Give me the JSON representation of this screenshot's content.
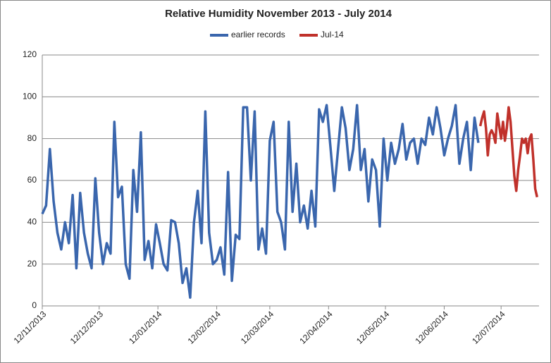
{
  "chart_data": {
    "type": "line",
    "title": "Relative Humidity November 2013 - July 2014",
    "legend": "top",
    "grid": true,
    "ylim": [
      0,
      120
    ],
    "yticks": [
      0,
      20,
      40,
      60,
      80,
      100,
      120
    ],
    "xlim": [
      "2013-11-12",
      "2014-08-01"
    ],
    "xticks": [
      {
        "value": "2013-11-12",
        "label": "12/11/2013"
      },
      {
        "value": "2013-12-12",
        "label": "12/12/2013"
      },
      {
        "value": "2014-01-12",
        "label": "12/01/2014"
      },
      {
        "value": "2014-02-12",
        "label": "12/02/2014"
      },
      {
        "value": "2014-03-12",
        "label": "12/03/2014"
      },
      {
        "value": "2014-04-12",
        "label": "12/04/2014"
      },
      {
        "value": "2014-05-12",
        "label": "12/05/2014"
      },
      {
        "value": "2014-06-12",
        "label": "12/06/2014"
      },
      {
        "value": "2014-07-12",
        "label": "12/07/2014"
      }
    ],
    "series": [
      {
        "name": "earlier records",
        "color": "#3a66ad",
        "x": [
          "2013-11-12",
          "2013-11-14",
          "2013-11-16",
          "2013-11-18",
          "2013-11-20",
          "2013-11-22",
          "2013-11-24",
          "2013-11-26",
          "2013-11-28",
          "2013-11-30",
          "2013-12-02",
          "2013-12-04",
          "2013-12-06",
          "2013-12-08",
          "2013-12-10",
          "2013-12-12",
          "2013-12-14",
          "2013-12-16",
          "2013-12-18",
          "2013-12-20",
          "2013-12-22",
          "2013-12-24",
          "2013-12-26",
          "2013-12-28",
          "2013-12-30",
          "2014-01-01",
          "2014-01-03",
          "2014-01-05",
          "2014-01-07",
          "2014-01-09",
          "2014-01-11",
          "2014-01-13",
          "2014-01-15",
          "2014-01-17",
          "2014-01-19",
          "2014-01-21",
          "2014-01-23",
          "2014-01-25",
          "2014-01-27",
          "2014-01-29",
          "2014-01-31",
          "2014-02-02",
          "2014-02-04",
          "2014-02-06",
          "2014-02-08",
          "2014-02-10",
          "2014-02-12",
          "2014-02-14",
          "2014-02-16",
          "2014-02-18",
          "2014-02-20",
          "2014-02-22",
          "2014-02-24",
          "2014-02-26",
          "2014-02-28",
          "2014-03-02",
          "2014-03-04",
          "2014-03-06",
          "2014-03-08",
          "2014-03-10",
          "2014-03-12",
          "2014-03-14",
          "2014-03-16",
          "2014-03-18",
          "2014-03-20",
          "2014-03-22",
          "2014-03-24",
          "2014-03-26",
          "2014-03-28",
          "2014-03-30",
          "2014-04-01",
          "2014-04-03",
          "2014-04-05",
          "2014-04-07",
          "2014-04-09",
          "2014-04-11",
          "2014-04-13",
          "2014-04-15",
          "2014-04-17",
          "2014-04-19",
          "2014-04-21",
          "2014-04-23",
          "2014-04-25",
          "2014-04-27",
          "2014-04-29",
          "2014-05-01",
          "2014-05-03",
          "2014-05-05",
          "2014-05-07",
          "2014-05-09",
          "2014-05-11",
          "2014-05-13",
          "2014-05-15",
          "2014-05-17",
          "2014-05-19",
          "2014-05-21",
          "2014-05-23",
          "2014-05-25",
          "2014-05-27",
          "2014-05-29",
          "2014-05-31",
          "2014-06-02",
          "2014-06-04",
          "2014-06-06",
          "2014-06-08",
          "2014-06-10",
          "2014-06-12",
          "2014-06-14",
          "2014-06-16",
          "2014-06-18",
          "2014-06-20",
          "2014-06-22",
          "2014-06-24",
          "2014-06-26",
          "2014-06-28",
          "2014-06-30"
        ],
        "values": [
          44,
          48,
          75,
          50,
          35,
          27,
          40,
          30,
          53,
          18,
          54,
          35,
          25,
          18,
          61,
          35,
          20,
          30,
          25,
          88,
          52,
          57,
          20,
          13,
          65,
          45,
          83,
          22,
          31,
          18,
          39,
          30,
          20,
          17,
          41,
          40,
          30,
          11,
          18,
          4,
          40,
          55,
          30,
          93,
          35,
          20,
          22,
          28,
          15,
          64,
          12,
          34,
          32,
          95,
          95,
          60,
          93,
          27,
          37,
          25,
          79,
          88,
          45,
          40,
          27,
          88,
          45,
          68,
          40,
          48,
          37,
          55,
          38,
          94,
          88,
          96,
          76,
          55,
          75,
          95,
          85,
          65,
          75,
          96,
          65,
          75,
          50,
          70,
          65,
          38,
          80,
          60,
          78,
          68,
          75,
          87,
          70,
          78,
          80,
          68,
          80,
          77,
          90,
          82,
          95,
          85,
          72,
          80,
          86,
          96,
          68,
          80,
          88,
          65,
          90,
          78
        ]
      },
      {
        "name": "Jul-14",
        "color": "#c0312b",
        "x": [
          "2014-07-01",
          "2014-07-02",
          "2014-07-03",
          "2014-07-04",
          "2014-07-05",
          "2014-07-06",
          "2014-07-07",
          "2014-07-08",
          "2014-07-09",
          "2014-07-10",
          "2014-07-11",
          "2014-07-12",
          "2014-07-13",
          "2014-07-14",
          "2014-07-15",
          "2014-07-16",
          "2014-07-17",
          "2014-07-18",
          "2014-07-19",
          "2014-07-20",
          "2014-07-21",
          "2014-07-22",
          "2014-07-23",
          "2014-07-24",
          "2014-07-25",
          "2014-07-26",
          "2014-07-27",
          "2014-07-28",
          "2014-07-29",
          "2014-07-30",
          "2014-07-31"
        ],
        "values": [
          86,
          90,
          93,
          85,
          72,
          82,
          84,
          82,
          78,
          92,
          86,
          80,
          88,
          79,
          85,
          95,
          88,
          75,
          62,
          55,
          65,
          72,
          80,
          78,
          80,
          73,
          80,
          82,
          70,
          56,
          52
        ]
      }
    ]
  }
}
